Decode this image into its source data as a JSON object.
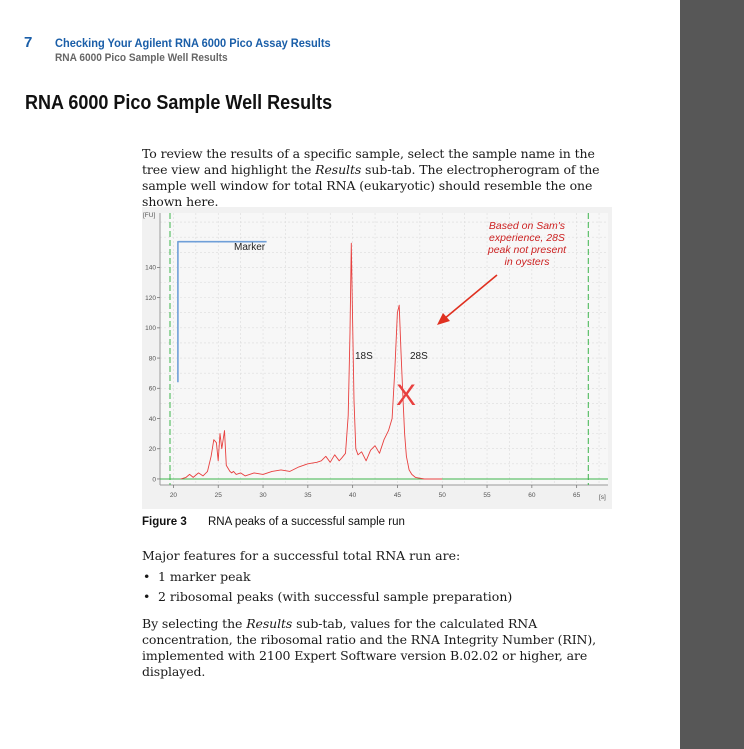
{
  "header": {
    "chapter_number": "7",
    "chapter_title": "Checking Your Agilent RNA 6000 Pico Assay Results",
    "section": "RNA 6000 Pico Sample Well Results"
  },
  "title": "RNA 6000 Pico Sample Well Results",
  "intro": {
    "part1": "To review the results of a specific sample, select the sample name in the tree view and highlight the ",
    "results_word": "Results",
    "part2": " sub-tab. The electropherogram of the sample well window for total RNA (eukaryotic) should resemble the one shown here."
  },
  "chart_data": {
    "type": "line",
    "ylabel": "[FU]",
    "xlabel": "[s]",
    "xlim": [
      18.5,
      68.5
    ],
    "ylim": [
      -4,
      176
    ],
    "x_ticks": [
      20,
      25,
      30,
      35,
      40,
      45,
      50,
      55,
      60,
      65
    ],
    "y_ticks": [
      0,
      20,
      40,
      60,
      80,
      100,
      120,
      140
    ],
    "grid": true,
    "series": [
      {
        "name": "",
        "color": "#e8403f",
        "x": [
          20.8,
          21.4,
          21.8,
          22.2,
          22.8,
          23.3,
          23.8,
          24.2,
          24.5,
          24.8,
          25.0,
          25.2,
          25.4,
          25.7,
          25.9,
          26.1,
          26.3,
          26.5,
          26.7,
          27.0,
          27.5,
          28.0,
          29.0,
          30.0,
          31.0,
          32.0,
          33.0,
          34.0,
          35.0,
          36.0,
          36.5,
          37.0,
          37.5,
          38.0,
          38.5,
          38.8,
          39.2,
          39.5,
          39.7,
          39.85,
          40.0,
          40.15,
          40.35,
          40.6,
          41.0,
          41.5,
          42.0,
          42.5,
          43.0,
          43.5,
          44.0,
          44.4,
          44.7,
          45.0,
          45.2,
          45.4,
          45.6,
          45.8,
          46.0,
          46.3,
          46.6,
          47.0,
          47.5,
          48.0,
          49.0,
          50.0
        ],
        "values": [
          0,
          1,
          3,
          1,
          4,
          2,
          5,
          15,
          26,
          24,
          12,
          30,
          20,
          32,
          9,
          7,
          5,
          4,
          5,
          3,
          4,
          2,
          4,
          3,
          5,
          6,
          5,
          8,
          10,
          11,
          12,
          15,
          11,
          16,
          12,
          14,
          17,
          42,
          97,
          156,
          105,
          52,
          20,
          16,
          18,
          12,
          19,
          22,
          17,
          26,
          32,
          40,
          72,
          110,
          115,
          84,
          56,
          30,
          15,
          6,
          3,
          1,
          0.5,
          0,
          0,
          0
        ]
      },
      {
        "name": "Marker",
        "color": "#6f9fd8",
        "x": [
          20.5,
          20.5,
          30.4
        ],
        "values": [
          64,
          157,
          157
        ]
      }
    ],
    "annotations": {
      "marker_label": "Marker",
      "peak_18s": "18S",
      "peak_28s": "28S",
      "note_line1": "Based on Sam's",
      "note_line2": "experience, 28S",
      "note_line3": "peak not present",
      "note_line4": "in oysters",
      "cross": "X"
    }
  },
  "figure": {
    "label": "Figure 3",
    "caption": "RNA peaks of a successful sample run"
  },
  "features_heading": "Major features for a successful total RNA run are:",
  "bullets": [
    {
      "symbol": "•",
      "text": "1 marker peak"
    },
    {
      "symbol": "•",
      "text": "2 ribosomal peaks (with successful sample preparation)"
    }
  ],
  "closing": {
    "part1": "By selecting the ",
    "results_word": "Results",
    "part2": " sub-tab, values for the calculated RNA concentration, the ribosomal ratio and the RNA Integrity Number (RIN), implemented with 2100 Expert Software version B.02.02 or higher, are displayed."
  },
  "colors": {
    "heading_blue": "#1a5ea8",
    "trace_red": "#e8403f",
    "marker_blue": "#6f9fd8",
    "baseline_green": "#3cb44b",
    "annotation_red": "#cc2222",
    "scrollbar": "#575757"
  }
}
